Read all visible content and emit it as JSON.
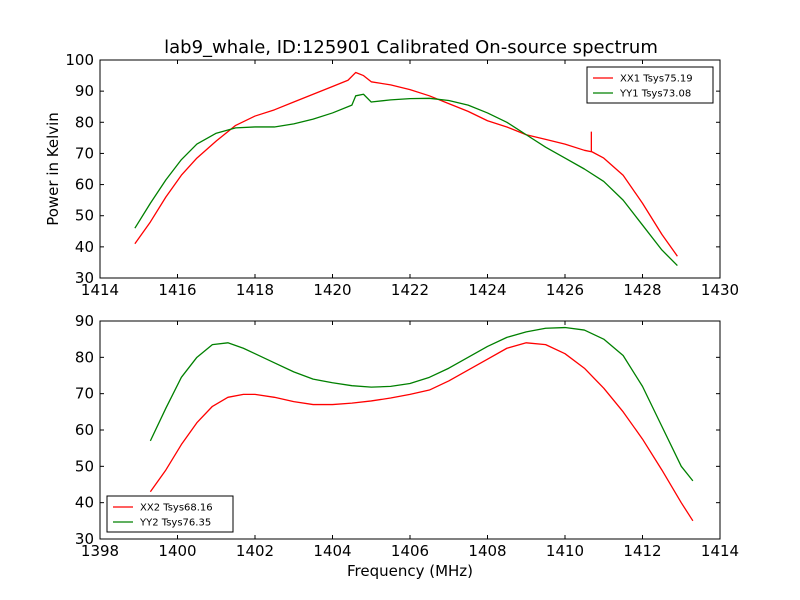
{
  "figure": {
    "title": "lab9_whale, ID:125901 Calibrated On-source spectrum",
    "xlabel": "Frequency (MHz)",
    "ylabel": "Power in Kelvin"
  },
  "colors": {
    "red": "#ff0000",
    "green": "#008000"
  },
  "chart_data": [
    {
      "type": "line",
      "title": "lab9_whale, ID:125901 Calibrated On-source spectrum",
      "xlabel": "",
      "ylabel": "Power in Kelvin",
      "xlim": [
        1414,
        1430
      ],
      "ylim": [
        30,
        100
      ],
      "xticks": [
        1414,
        1416,
        1418,
        1420,
        1422,
        1424,
        1426,
        1428,
        1430
      ],
      "yticks": [
        30,
        40,
        50,
        60,
        70,
        80,
        90,
        100
      ],
      "grid": false,
      "legend": "top-right",
      "series": [
        {
          "name": "XX1 Tsys75.19",
          "color": "#ff0000",
          "points": [
            [
              1414.9,
              41
            ],
            [
              1415.3,
              48
            ],
            [
              1415.7,
              56
            ],
            [
              1416.1,
              63
            ],
            [
              1416.5,
              68.5
            ],
            [
              1417.0,
              74
            ],
            [
              1417.5,
              79
            ],
            [
              1418.0,
              82
            ],
            [
              1418.5,
              84
            ],
            [
              1419.0,
              86.5
            ],
            [
              1419.5,
              89
            ],
            [
              1420.0,
              91.5
            ],
            [
              1420.4,
              93.5
            ],
            [
              1420.6,
              96
            ],
            [
              1420.8,
              95
            ],
            [
              1421.0,
              93
            ],
            [
              1421.5,
              92
            ],
            [
              1422.0,
              90.5
            ],
            [
              1422.5,
              88.5
            ],
            [
              1423.0,
              86
            ],
            [
              1423.5,
              83.5
            ],
            [
              1424.0,
              80.5
            ],
            [
              1424.5,
              78.5
            ],
            [
              1425.0,
              76
            ],
            [
              1425.5,
              74.5
            ],
            [
              1426.0,
              73
            ],
            [
              1426.5,
              71
            ],
            [
              1426.7,
              70.5
            ],
            [
              1427.0,
              68.5
            ],
            [
              1427.5,
              63
            ],
            [
              1428.0,
              54
            ],
            [
              1428.5,
              44
            ],
            [
              1428.9,
              37
            ]
          ],
          "spikes": [
            [
              1426.68,
              77
            ]
          ]
        },
        {
          "name": "YY1 Tsys73.08",
          "color": "#008000",
          "points": [
            [
              1414.9,
              46
            ],
            [
              1415.3,
              54
            ],
            [
              1415.7,
              61.5
            ],
            [
              1416.1,
              68
            ],
            [
              1416.5,
              73
            ],
            [
              1417.0,
              76.5
            ],
            [
              1417.5,
              78.2
            ],
            [
              1418.0,
              78.5
            ],
            [
              1418.5,
              78.5
            ],
            [
              1419.0,
              79.5
            ],
            [
              1419.5,
              81
            ],
            [
              1420.0,
              83
            ],
            [
              1420.5,
              85.5
            ],
            [
              1420.6,
              88.5
            ],
            [
              1420.8,
              89
            ],
            [
              1421.0,
              86.5
            ],
            [
              1421.5,
              87.2
            ],
            [
              1422.0,
              87.6
            ],
            [
              1422.5,
              87.7
            ],
            [
              1423.0,
              87
            ],
            [
              1423.5,
              85.5
            ],
            [
              1424.0,
              83
            ],
            [
              1424.5,
              80
            ],
            [
              1425.0,
              76
            ],
            [
              1425.5,
              72
            ],
            [
              1426.0,
              68.5
            ],
            [
              1426.5,
              65
            ],
            [
              1427.0,
              61
            ],
            [
              1427.5,
              55
            ],
            [
              1428.0,
              47
            ],
            [
              1428.5,
              39
            ],
            [
              1428.9,
              34
            ]
          ]
        }
      ]
    },
    {
      "type": "line",
      "title": "",
      "xlabel": "Frequency (MHz)",
      "ylabel": "",
      "xlim": [
        1398,
        1414
      ],
      "ylim": [
        30,
        90
      ],
      "xticks": [
        1398,
        1400,
        1402,
        1404,
        1406,
        1408,
        1410,
        1412,
        1414
      ],
      "yticks": [
        30,
        40,
        50,
        60,
        70,
        80,
        90
      ],
      "grid": false,
      "legend": "bottom-left",
      "series": [
        {
          "name": "XX2 Tsys68.16",
          "color": "#ff0000",
          "points": [
            [
              1399.3,
              43
            ],
            [
              1399.7,
              49
            ],
            [
              1400.1,
              56
            ],
            [
              1400.5,
              62
            ],
            [
              1400.9,
              66.5
            ],
            [
              1401.3,
              69
            ],
            [
              1401.7,
              69.8
            ],
            [
              1402.0,
              69.8
            ],
            [
              1402.5,
              69
            ],
            [
              1403.0,
              67.8
            ],
            [
              1403.5,
              67
            ],
            [
              1404.0,
              67
            ],
            [
              1404.5,
              67.4
            ],
            [
              1405.0,
              68
            ],
            [
              1405.5,
              68.8
            ],
            [
              1406.0,
              69.8
            ],
            [
              1406.5,
              71
            ],
            [
              1407.0,
              73.5
            ],
            [
              1407.5,
              76.5
            ],
            [
              1408.0,
              79.5
            ],
            [
              1408.5,
              82.5
            ],
            [
              1409.0,
              84
            ],
            [
              1409.5,
              83.5
            ],
            [
              1410.0,
              81
            ],
            [
              1410.5,
              77
            ],
            [
              1411.0,
              71.5
            ],
            [
              1411.5,
              65
            ],
            [
              1412.0,
              57.5
            ],
            [
              1412.5,
              49
            ],
            [
              1413.0,
              40
            ],
            [
              1413.3,
              35
            ]
          ]
        },
        {
          "name": "YY2 Tsys76.35",
          "color": "#008000",
          "points": [
            [
              1399.3,
              57
            ],
            [
              1399.7,
              66
            ],
            [
              1400.1,
              74.5
            ],
            [
              1400.5,
              80
            ],
            [
              1400.9,
              83.5
            ],
            [
              1401.3,
              84
            ],
            [
              1401.7,
              82.5
            ],
            [
              1402.0,
              81
            ],
            [
              1402.5,
              78.5
            ],
            [
              1403.0,
              76
            ],
            [
              1403.5,
              74
            ],
            [
              1404.0,
              73
            ],
            [
              1404.5,
              72.2
            ],
            [
              1405.0,
              71.8
            ],
            [
              1405.5,
              72
            ],
            [
              1406.0,
              72.8
            ],
            [
              1406.5,
              74.5
            ],
            [
              1407.0,
              77
            ],
            [
              1407.5,
              80
            ],
            [
              1408.0,
              83
            ],
            [
              1408.5,
              85.5
            ],
            [
              1409.0,
              87
            ],
            [
              1409.5,
              88
            ],
            [
              1410.0,
              88.2
            ],
            [
              1410.5,
              87.5
            ],
            [
              1411.0,
              85
            ],
            [
              1411.5,
              80.5
            ],
            [
              1412.0,
              72
            ],
            [
              1412.5,
              61
            ],
            [
              1413.0,
              50
            ],
            [
              1413.3,
              46
            ]
          ]
        }
      ]
    }
  ]
}
